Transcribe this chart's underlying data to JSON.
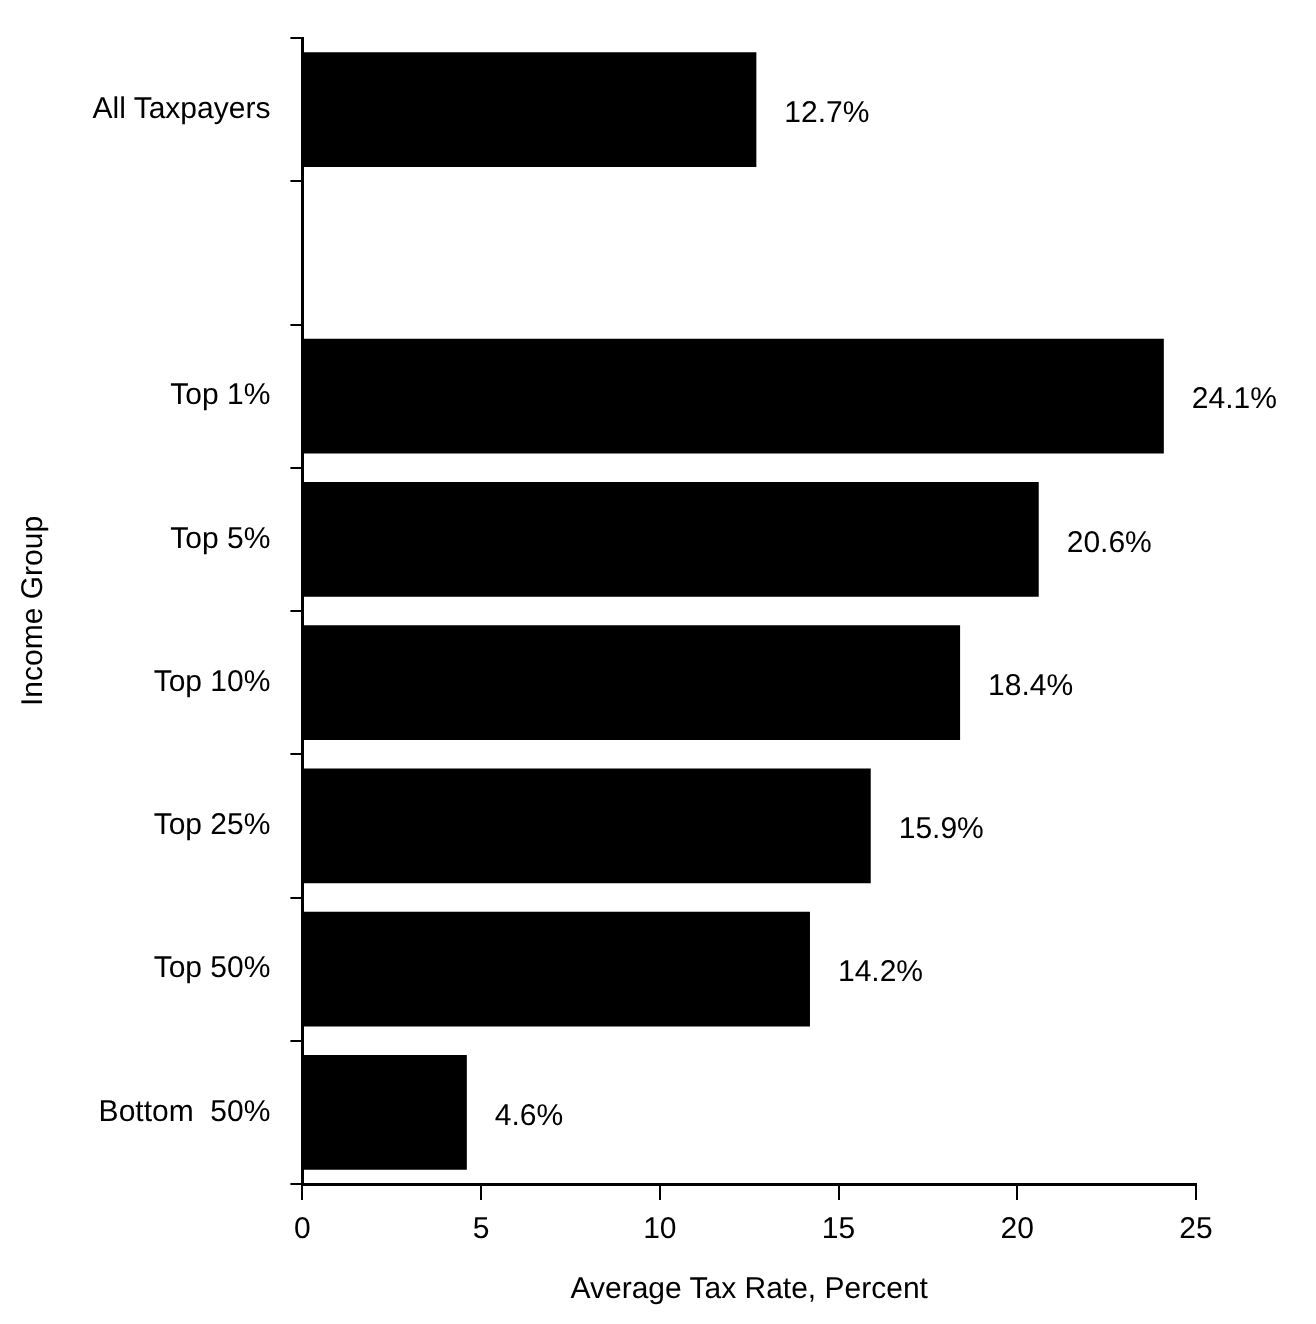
{
  "chart_data": {
    "type": "bar",
    "orientation": "horizontal",
    "xlabel": "Average Tax Rate, Percent",
    "ylabel": "Income Group",
    "categories": [
      "All Taxpayers",
      null,
      "Top 1%",
      "Top 5%",
      "Top 10%",
      "Top 25%",
      "Top 50%",
      "Bottom  50%"
    ],
    "values": [
      12.7,
      null,
      24.1,
      20.6,
      18.4,
      15.9,
      14.2,
      4.6
    ],
    "value_labels": [
      "12.7%",
      null,
      "24.1%",
      "20.6%",
      "18.4%",
      "15.9%",
      "14.2%",
      "4.6%"
    ],
    "color": "#000000",
    "xlim": [
      0,
      25
    ],
    "xticks": [
      0,
      5,
      10,
      15,
      20,
      25
    ],
    "grid": false,
    "legend": false
  }
}
